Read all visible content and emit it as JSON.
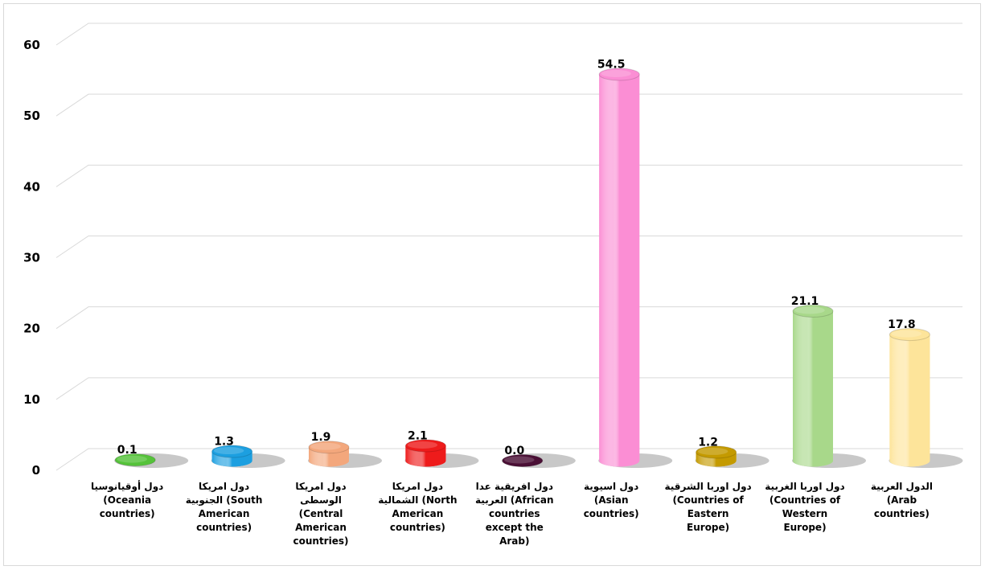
{
  "chart_data": {
    "type": "bar",
    "style": "3d-cylinder",
    "title": "",
    "xlabel": "",
    "ylabel": "",
    "ylim": [
      0,
      60
    ],
    "yticks": [
      0,
      10,
      20,
      30,
      40,
      50,
      60
    ],
    "grid": true,
    "legend": "none",
    "categories": [
      "دول أوقيانوسيا\n(Oceania\ncountries)",
      "دول امريكا\nالجنوبية (South\nAmerican\ncountries)",
      "دول امريكا الوسطى\n(Central\nAmerican\ncountries)",
      "دول امريكا\nالشمالية (North\nAmerican\ncountries)",
      "دول افريقية عدا\nالعربية (African\ncountries\nexcept the\nArab)",
      "دول اسيوية\n(Asian\ncountries)",
      "دول اوربا الشرقية\n(Countries of\nEastern\nEurope)",
      "دول اوربا الغربية\n(Countries of\nWestern\nEurope)",
      "الدول العربية\n(Arab\ncountries)"
    ],
    "values": [
      0.1,
      1.3,
      1.9,
      2.1,
      0.0,
      54.5,
      1.2,
      21.1,
      17.8
    ],
    "value_labels": [
      "0.1",
      "1.3",
      "1.9",
      "2.1",
      "0.0",
      "54.5",
      "1.2",
      "21.1",
      "17.8"
    ],
    "colors": [
      "#55c23a",
      "#1c9fe0",
      "#f3a77c",
      "#ee1b1b",
      "#4a0f35",
      "#fb8ed4",
      "#c49a00",
      "#a8d88a",
      "#fde49a"
    ]
  }
}
